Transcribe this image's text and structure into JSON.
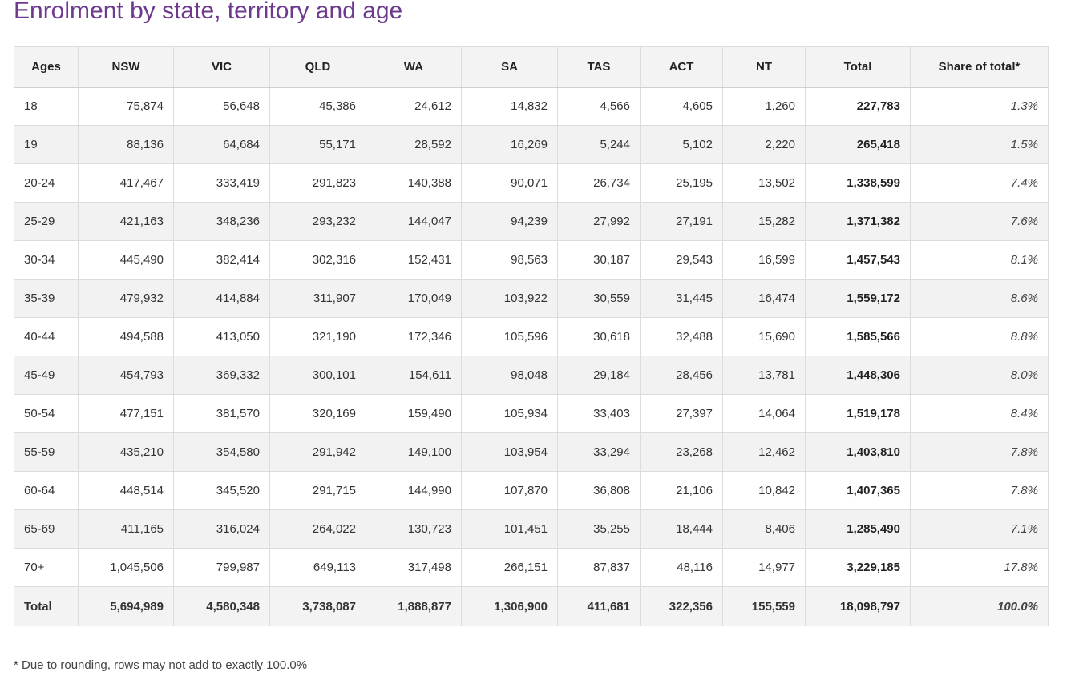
{
  "title": "Enrolment by state, territory and age",
  "columns": [
    "Ages",
    "NSW",
    "VIC",
    "QLD",
    "WA",
    "SA",
    "TAS",
    "ACT",
    "NT",
    "Total",
    "Share of total*"
  ],
  "rows": [
    [
      "18",
      "75,874",
      "56,648",
      "45,386",
      "24,612",
      "14,832",
      "4,566",
      "4,605",
      "1,260",
      "227,783",
      "1.3%"
    ],
    [
      "19",
      "88,136",
      "64,684",
      "55,171",
      "28,592",
      "16,269",
      "5,244",
      "5,102",
      "2,220",
      "265,418",
      "1.5%"
    ],
    [
      "20-24",
      "417,467",
      "333,419",
      "291,823",
      "140,388",
      "90,071",
      "26,734",
      "25,195",
      "13,502",
      "1,338,599",
      "7.4%"
    ],
    [
      "25-29",
      "421,163",
      "348,236",
      "293,232",
      "144,047",
      "94,239",
      "27,992",
      "27,191",
      "15,282",
      "1,371,382",
      "7.6%"
    ],
    [
      "30-34",
      "445,490",
      "382,414",
      "302,316",
      "152,431",
      "98,563",
      "30,187",
      "29,543",
      "16,599",
      "1,457,543",
      "8.1%"
    ],
    [
      "35-39",
      "479,932",
      "414,884",
      "311,907",
      "170,049",
      "103,922",
      "30,559",
      "31,445",
      "16,474",
      "1,559,172",
      "8.6%"
    ],
    [
      "40-44",
      "494,588",
      "413,050",
      "321,190",
      "172,346",
      "105,596",
      "30,618",
      "32,488",
      "15,690",
      "1,585,566",
      "8.8%"
    ],
    [
      "45-49",
      "454,793",
      "369,332",
      "300,101",
      "154,611",
      "98,048",
      "29,184",
      "28,456",
      "13,781",
      "1,448,306",
      "8.0%"
    ],
    [
      "50-54",
      "477,151",
      "381,570",
      "320,169",
      "159,490",
      "105,934",
      "33,403",
      "27,397",
      "14,064",
      "1,519,178",
      "8.4%"
    ],
    [
      "55-59",
      "435,210",
      "354,580",
      "291,942",
      "149,100",
      "103,954",
      "33,294",
      "23,268",
      "12,462",
      "1,403,810",
      "7.8%"
    ],
    [
      "60-64",
      "448,514",
      "345,520",
      "291,715",
      "144,990",
      "107,870",
      "36,808",
      "21,106",
      "10,842",
      "1,407,365",
      "7.8%"
    ],
    [
      "65-69",
      "411,165",
      "316,024",
      "264,022",
      "130,723",
      "101,451",
      "35,255",
      "18,444",
      "8,406",
      "1,285,490",
      "7.1%"
    ],
    [
      "70+",
      "1,045,506",
      "799,987",
      "649,113",
      "317,498",
      "266,151",
      "87,837",
      "48,116",
      "14,977",
      "3,229,185",
      "17.8%"
    ]
  ],
  "totals": [
    "Total",
    "5,694,989",
    "4,580,348",
    "3,738,087",
    "1,888,877",
    "1,306,900",
    "411,681",
    "322,356",
    "155,559",
    "18,098,797",
    "100.0%"
  ],
  "footnote": "* Due to rounding, rows may not add to exactly 100.0%"
}
